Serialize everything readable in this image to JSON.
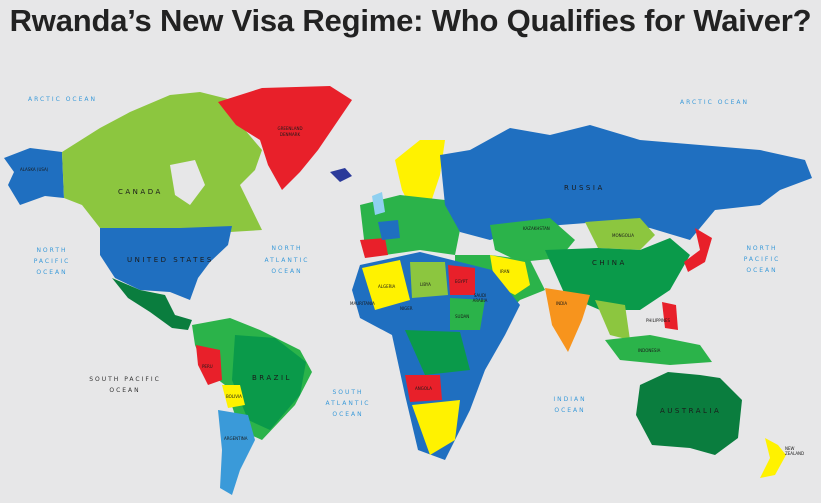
{
  "title": "Rwanda’s New Visa Regime: Who Qualifies for Waiver?",
  "colors": {
    "background": "#e7e7e8",
    "blue": "#1f6fc0",
    "light_green": "#8cc63f",
    "red": "#e8202a",
    "dark_green": "#0a7d3e",
    "yellow": "#fff200",
    "green": "#2bb34a"
  },
  "oceans": {
    "arctic_west": "ARCTIC OCEAN",
    "arctic_east": "ARCTIC OCEAN",
    "north_pacific_west": [
      "NORTH",
      "PACIFIC",
      "OCEAN"
    ],
    "north_pacific_east": [
      "NORTH",
      "PACIFIC",
      "OCEAN"
    ],
    "north_atlantic": [
      "NORTH",
      "ATLANTIC",
      "OCEAN"
    ],
    "south_pacific": [
      "SOUTH PACIFIC",
      "OCEAN"
    ],
    "south_atlantic": [
      "SOUTH",
      "ATLANTIC",
      "OCEAN"
    ],
    "indian": [
      "INDIAN",
      "OCEAN"
    ]
  },
  "countries": {
    "canada": "CANADA",
    "alaska": "ALASKA (USA)",
    "greenland": [
      "GREENLAND",
      "DENMARK"
    ],
    "united_states": "UNITED STATES",
    "russia": "RUSSIA",
    "kazakhstan": "KAZAKHSTAN",
    "mongolia": "MONGOLIA",
    "china": "CHINA",
    "iran": "IRAN",
    "india": "INDIA",
    "saudi_arabia": [
      "SAUDI",
      "ARABIA"
    ],
    "libya": "LIBYA",
    "egypt": "EGYPT",
    "algeria": "ALGERIA",
    "mauritania": "MAURITANIA",
    "niger": "NIGER",
    "sudan": "SUDAN",
    "angola": "ANGOLA",
    "brazil": "BRAZIL",
    "peru": "PERU",
    "bolivia": "BOLIVIA",
    "argentina": "ARGENTINA",
    "indonesia": "INDONESIA",
    "philippines": "PHILIPPINES",
    "australia": "AUSTRALIA",
    "new_zealand": [
      "NEW",
      "ZEALAND"
    ]
  }
}
